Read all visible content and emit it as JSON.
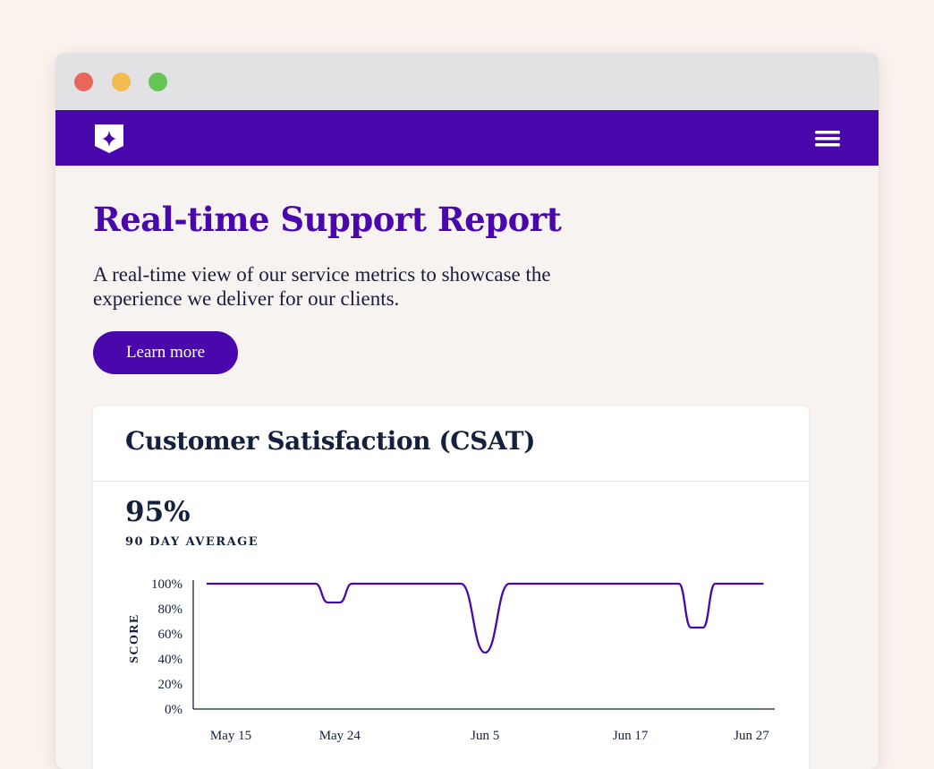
{
  "window": {
    "controls": [
      "close",
      "minimize",
      "zoom"
    ]
  },
  "navbar": {
    "logo_icon": "shield-star-icon",
    "menu_icon": "hamburger-menu-icon",
    "background": "#4a08ac"
  },
  "hero": {
    "title": "Real-time Support Report",
    "description": "A real-time view of our service metrics to showcase the experience we deliver for our clients.",
    "cta_label": "Learn more"
  },
  "card": {
    "title": "Customer Satisfaction (CSAT)",
    "stat_value": "95%",
    "stat_label": "90 DAY AVERAGE"
  },
  "chart_data": {
    "type": "line",
    "ylabel": "SCORE",
    "xlabel": "",
    "ylim": [
      0,
      100
    ],
    "yticks": [
      "0%",
      "20%",
      "40%",
      "60%",
      "80%",
      "100%"
    ],
    "ytick_values": [
      0,
      20,
      40,
      60,
      80,
      100
    ],
    "xticks": [
      "May 15",
      "May 24",
      "Jun 5",
      "Jun 17",
      "Jun 27"
    ],
    "xtick_values": [
      "2023-05-15",
      "2023-05-24",
      "2023-06-05",
      "2023-06-17",
      "2023-06-27"
    ],
    "line_color": "#4a08ac",
    "grid": false,
    "series": [
      {
        "x": [
          "2023-05-13",
          "2023-05-22",
          "2023-05-23",
          "2023-05-24",
          "2023-05-25",
          "2023-06-02",
          "2023-06-03",
          "2023-06-05",
          "2023-06-07",
          "2023-06-08",
          "2023-06-20",
          "2023-06-21",
          "2023-06-22",
          "2023-06-23",
          "2023-06-24",
          "2023-06-28"
        ],
        "values": [
          100,
          100,
          85,
          85,
          100,
          100,
          100,
          45,
          100,
          100,
          100,
          100,
          65,
          65,
          100,
          100
        ]
      }
    ]
  }
}
